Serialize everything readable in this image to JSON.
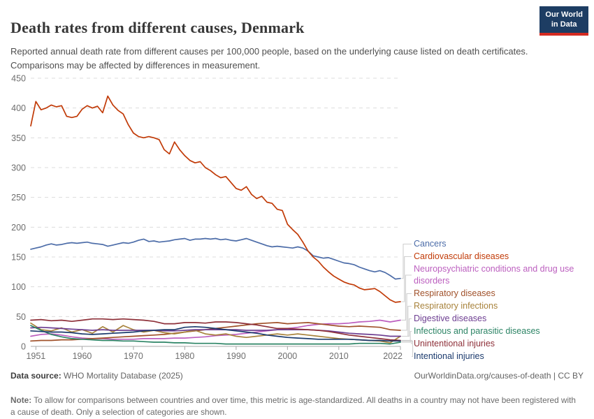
{
  "header": {
    "title": "Death rates from different causes, Denmark",
    "subtitle": "Reported annual death rate from different causes per 100,000 people, based on the underlying cause listed on death certificates. Comparisons may be affected by differences in measurement.",
    "logo_line1": "Our World",
    "logo_line2": "in Data",
    "logo_bg": "#1d3d63",
    "logo_stripe": "#d42b21"
  },
  "chart_data": {
    "type": "line",
    "title": "Death rates from different causes, Denmark",
    "xlabel": "",
    "ylabel": "",
    "xlim": [
      1950,
      2022
    ],
    "ylim": [
      0,
      450
    ],
    "grid": "horizontal-dashed",
    "legend_position": "right",
    "x_ticks": [
      1951,
      1960,
      1970,
      1980,
      1990,
      2000,
      2010,
      2022
    ],
    "y_ticks": [
      0,
      50,
      100,
      150,
      200,
      250,
      300,
      350,
      400,
      450
    ],
    "axis_color": "#a8a8a8",
    "grid_color": "#dcdcdc",
    "tick_label_color": "#6e6e6e",
    "connector_color": "#cfcfcf",
    "series": [
      {
        "name": "Cancers",
        "color": "#4C6CA8",
        "start": 1950,
        "step": 1,
        "values": [
          163,
          165,
          167,
          170,
          172,
          170,
          171,
          173,
          174,
          173,
          174,
          175,
          173,
          172,
          171,
          168,
          170,
          172,
          174,
          173,
          175,
          178,
          180,
          176,
          177,
          175,
          176,
          177,
          179,
          180,
          181,
          178,
          180,
          180,
          181,
          180,
          181,
          179,
          180,
          178,
          177,
          179,
          181,
          178,
          175,
          172,
          169,
          167,
          168,
          167,
          166,
          165,
          167,
          165,
          160,
          152,
          150,
          148,
          149,
          146,
          143,
          140,
          139,
          137,
          133,
          130,
          127,
          125,
          127,
          124,
          119,
          113,
          114
        ]
      },
      {
        "name": "Cardiovascular diseases",
        "color": "#C13A07",
        "start": 1950,
        "step": 1,
        "values": [
          370,
          411,
          397,
          400,
          405,
          402,
          404,
          386,
          384,
          386,
          398,
          404,
          400,
          403,
          392,
          420,
          405,
          396,
          390,
          372,
          358,
          352,
          350,
          352,
          350,
          347,
          330,
          323,
          343,
          330,
          320,
          312,
          308,
          310,
          300,
          295,
          288,
          283,
          285,
          275,
          265,
          262,
          268,
          255,
          248,
          252,
          242,
          240,
          230,
          228,
          205,
          196,
          188,
          175,
          160,
          150,
          143,
          133,
          125,
          118,
          113,
          108,
          105,
          103,
          98,
          95,
          96,
          97,
          92,
          85,
          78,
          74,
          75
        ]
      },
      {
        "name": "Neuropsychiatric conditions and drug use disorders",
        "color": "#BC5FBF",
        "start": 1950,
        "step": 2,
        "values": [
          17,
          20,
          21,
          19,
          16,
          14,
          13,
          13,
          12,
          12,
          12,
          13,
          13,
          13,
          14,
          14,
          15,
          16,
          18,
          19,
          20,
          22,
          24,
          26,
          28,
          30,
          32,
          35,
          37,
          38,
          38,
          39,
          41,
          42,
          44,
          41,
          44
        ]
      },
      {
        "name": "Respiratory diseases",
        "color": "#A0512A",
        "start": 1950,
        "step": 2,
        "values": [
          9,
          10,
          10,
          11,
          11,
          12,
          13,
          14,
          15,
          16,
          17,
          18,
          19,
          20,
          22,
          24,
          26,
          28,
          30,
          32,
          34,
          36,
          38,
          39,
          40,
          38,
          39,
          40,
          38,
          36,
          34,
          33,
          34,
          33,
          32,
          28,
          27
        ]
      },
      {
        "name": "Respiratory infections",
        "color": "#A8833C",
        "start": 1950,
        "step": 2,
        "values": [
          39,
          28,
          26,
          31,
          24,
          28,
          22,
          33,
          24,
          35,
          28,
          24,
          27,
          23,
          21,
          24,
          27,
          21,
          19,
          21,
          17,
          15,
          17,
          19,
          21,
          19,
          21,
          19,
          17,
          15,
          13,
          12,
          11,
          10,
          9,
          6,
          17
        ]
      },
      {
        "name": "Digestive diseases",
        "color": "#6D3E91",
        "start": 1950,
        "step": 2,
        "values": [
          31,
          32,
          31,
          30,
          29,
          28,
          27,
          28,
          27,
          27,
          27,
          27,
          27,
          26,
          26,
          27,
          28,
          28,
          28,
          28,
          28,
          27,
          27,
          27,
          28,
          28,
          28,
          28,
          27,
          26,
          24,
          22,
          21,
          20,
          19,
          17,
          17
        ]
      },
      {
        "name": "Infectious and parasitic diseases",
        "color": "#2C8465",
        "start": 1950,
        "step": 2,
        "values": [
          35,
          27,
          20,
          16,
          13,
          12,
          11,
          10,
          10,
          9,
          9,
          8,
          7,
          7,
          6,
          6,
          5,
          5,
          5,
          4,
          4,
          4,
          4,
          4,
          4,
          4,
          4,
          4,
          4,
          4,
          4,
          4,
          5,
          5,
          5,
          4,
          7
        ]
      },
      {
        "name": "Unintentional injuries",
        "color": "#8E3039",
        "start": 1950,
        "step": 2,
        "values": [
          44,
          45,
          43,
          44,
          42,
          44,
          46,
          46,
          45,
          46,
          45,
          44,
          42,
          38,
          38,
          40,
          40,
          39,
          41,
          41,
          40,
          38,
          36,
          33,
          30,
          30,
          29,
          28,
          27,
          25,
          22,
          19,
          17,
          15,
          13,
          11,
          10
        ]
      },
      {
        "name": "Intentional injuries",
        "color": "#1B3A6D",
        "start": 1950,
        "step": 2,
        "values": [
          26,
          25,
          24,
          24,
          23,
          21,
          20,
          21,
          22,
          23,
          24,
          26,
          27,
          28,
          28,
          32,
          33,
          32,
          30,
          28,
          26,
          24,
          22,
          19,
          17,
          15,
          14,
          13,
          12,
          12,
          12,
          12,
          11,
          10,
          10,
          9,
          9
        ]
      }
    ]
  },
  "footer": {
    "datasource_label": "Data source:",
    "datasource": "WHO Mortality Database (2025)",
    "url": "OurWorldinData.org/causes-of-death",
    "divider": " | ",
    "license": "CC BY",
    "note_label": "Note:",
    "note_text": " To allow for comparisons between countries and over time, this metric is age-standardized. All deaths in a country may not have been registered with a cause of death. Only a selection of categories are shown."
  }
}
